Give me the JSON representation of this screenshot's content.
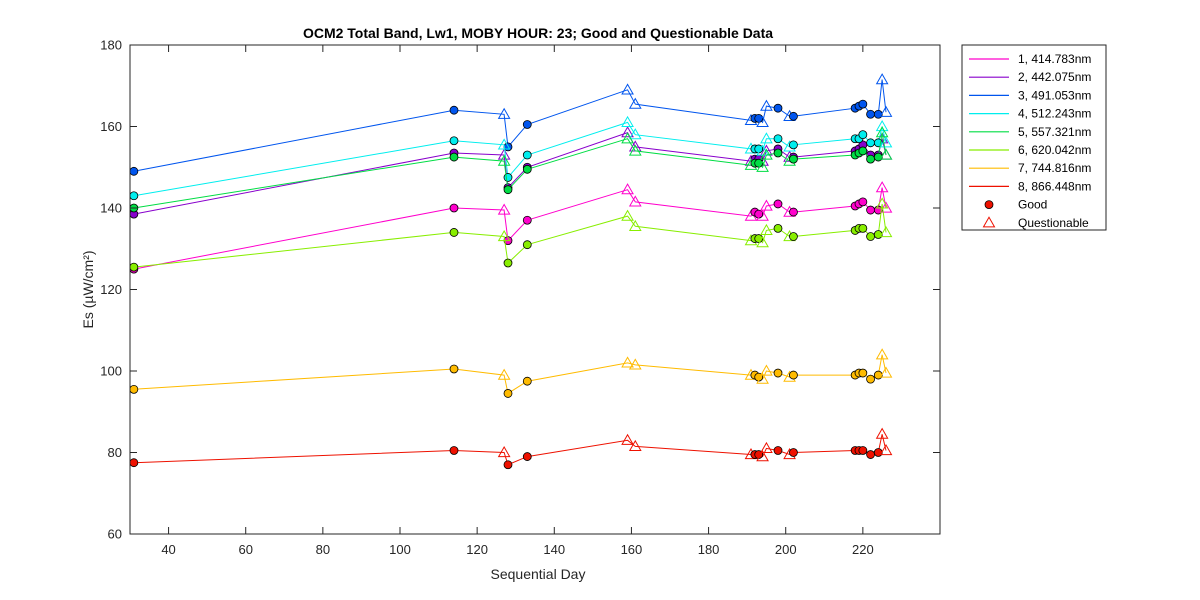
{
  "chart_data": {
    "type": "line",
    "title": "OCM2 Total Band,  Lw1, MOBY HOUR: 23;  Good and Questionable Data",
    "xlabel": "Sequential Day",
    "ylabel": "Es (µW/cm²)",
    "xlim": [
      30,
      240
    ],
    "ylim": [
      60,
      180
    ],
    "xticks": [
      40,
      60,
      80,
      100,
      120,
      140,
      160,
      180,
      200,
      220
    ],
    "yticks": [
      60,
      80,
      100,
      120,
      140,
      160,
      180
    ],
    "grid": false,
    "legend_position": "outside-right-top",
    "marker_legend": [
      {
        "label": "Good",
        "marker": "circle"
      },
      {
        "label": "Questionable",
        "marker": "triangle"
      }
    ],
    "x": [
      31,
      114,
      127,
      128,
      133,
      159,
      161,
      191,
      192,
      193,
      194,
      195,
      198,
      201,
      202,
      218,
      219,
      220,
      222,
      224,
      225,
      226
    ],
    "flags": [
      "G",
      "G",
      "Q",
      "G",
      "G",
      "Q",
      "Q",
      "Q",
      "G",
      "G",
      "Q",
      "Q",
      "G",
      "Q",
      "G",
      "G",
      "G",
      "G",
      "G",
      "G",
      "Q",
      "Q"
    ],
    "series": [
      {
        "name": "1, 414.783nm",
        "color": "#ff00cc",
        "values": [
          125,
          140,
          139.5,
          132,
          137,
          144.5,
          141.5,
          138,
          139,
          138.5,
          138,
          140.5,
          141,
          139,
          139,
          140.5,
          141,
          141.5,
          139.5,
          139.5,
          145,
          140
        ]
      },
      {
        "name": "2, 442.075nm",
        "color": "#8800cc",
        "values": [
          138.5,
          153.5,
          153,
          145,
          150,
          158.5,
          155,
          151.5,
          152,
          152,
          151.5,
          154,
          154.5,
          152.5,
          152.5,
          154,
          154.5,
          155.5,
          153,
          153,
          157,
          153
        ]
      },
      {
        "name": "3, 491.053nm",
        "color": "#0055ee",
        "values": [
          149,
          164,
          163,
          155,
          160.5,
          169,
          165.5,
          161.5,
          162,
          162,
          161,
          165,
          164.5,
          162.5,
          162.5,
          164.5,
          165,
          165.5,
          163,
          163,
          171.5,
          163.5
        ]
      },
      {
        "name": "4, 512.243nm",
        "color": "#00eeee",
        "values": [
          143,
          156.5,
          155.5,
          147.5,
          153,
          161,
          158,
          154.5,
          154.5,
          154.5,
          154,
          157,
          157,
          155,
          155.5,
          157,
          157,
          158,
          156,
          156,
          160,
          156
        ]
      },
      {
        "name": "5, 557.321nm",
        "color": "#00dd44",
        "values": [
          140,
          152.5,
          151.5,
          144.5,
          149.5,
          157,
          154,
          150.5,
          151,
          151,
          150,
          153,
          153.5,
          151.5,
          152,
          153,
          153.5,
          154,
          152,
          152.5,
          158.5,
          153
        ]
      },
      {
        "name": "6, 620.042nm",
        "color": "#88ee00",
        "values": [
          125.5,
          134,
          133,
          126.5,
          131,
          138,
          135.5,
          132,
          132.5,
          132.5,
          131.5,
          134.5,
          135,
          133,
          133,
          134.5,
          135,
          135,
          133,
          133.5,
          141,
          134
        ]
      },
      {
        "name": "7, 744.816nm",
        "color": "#ffbb00",
        "values": [
          95.5,
          100.5,
          99,
          94.5,
          97.5,
          102,
          101.5,
          99,
          99,
          98.5,
          98,
          100,
          99.5,
          98.5,
          99,
          99,
          99.5,
          99.5,
          98,
          99,
          104,
          99.5
        ]
      },
      {
        "name": "8, 866.448nm",
        "color": "#ee1100",
        "values": [
          77.5,
          80.5,
          80,
          77,
          79,
          83,
          81.5,
          79.5,
          79.5,
          79.5,
          79,
          81,
          80.5,
          79.5,
          80,
          80.5,
          80.5,
          80.5,
          79.5,
          80,
          84.5,
          80.5
        ]
      }
    ]
  }
}
